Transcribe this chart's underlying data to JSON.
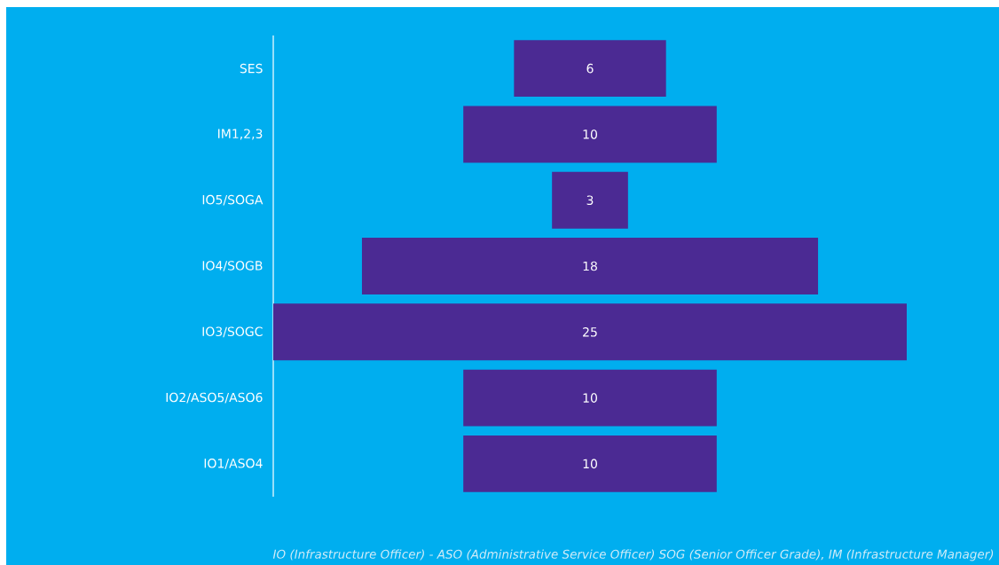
{
  "chart_data": {
    "type": "other",
    "categories": [
      "SES",
      "IM1,2,3",
      "IO5/SOGA",
      "IO4/SOGB",
      "IO3/SOGC",
      "IO2/ASO5/ASO6",
      "IO1/ASO4"
    ],
    "values": [
      6,
      10,
      3,
      18,
      25,
      10,
      10
    ],
    "color": "#4b2a93",
    "data_labels": true,
    "annotations": [
      "IO (Infrastructure Officer) -  ASO (Administrative Service Officer)  SOG (Senior Officer Grade), IM (Infrastructure Manager)"
    ]
  }
}
